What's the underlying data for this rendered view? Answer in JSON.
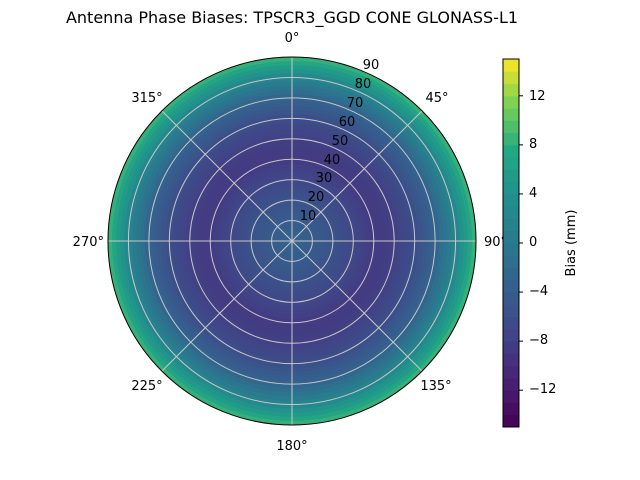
{
  "chart_data": {
    "type": "heatmap",
    "projection": "polar",
    "title": "Antenna Phase Biases: TPSCR3_GGD      CONE GLONASS-L1",
    "angle_ticks": [
      "0°",
      "45°",
      "90°",
      "135°",
      "180°",
      "225°",
      "270°",
      "315°"
    ],
    "radial_ticks": [
      "10",
      "20",
      "30",
      "40",
      "50",
      "60",
      "70",
      "80",
      "90"
    ],
    "radial_range": [
      0,
      90
    ],
    "grid": true,
    "colormap": "viridis",
    "colorbar": {
      "label": "Bias (mm)",
      "range": [
        -15,
        15
      ],
      "ticks": [
        "−12",
        "−8",
        "−4",
        "0",
        "4",
        "8",
        "12"
      ],
      "tick_values": [
        -12,
        -8,
        -4,
        0,
        4,
        8,
        12
      ]
    },
    "radial_profile": {
      "zenith_angle_deg": [
        0,
        10,
        20,
        30,
        40,
        50,
        60,
        70,
        80,
        90
      ],
      "bias_mm": [
        -3,
        -4,
        -5.5,
        -7,
        -8.5,
        -8,
        -6,
        -3,
        2,
        9
      ]
    }
  }
}
